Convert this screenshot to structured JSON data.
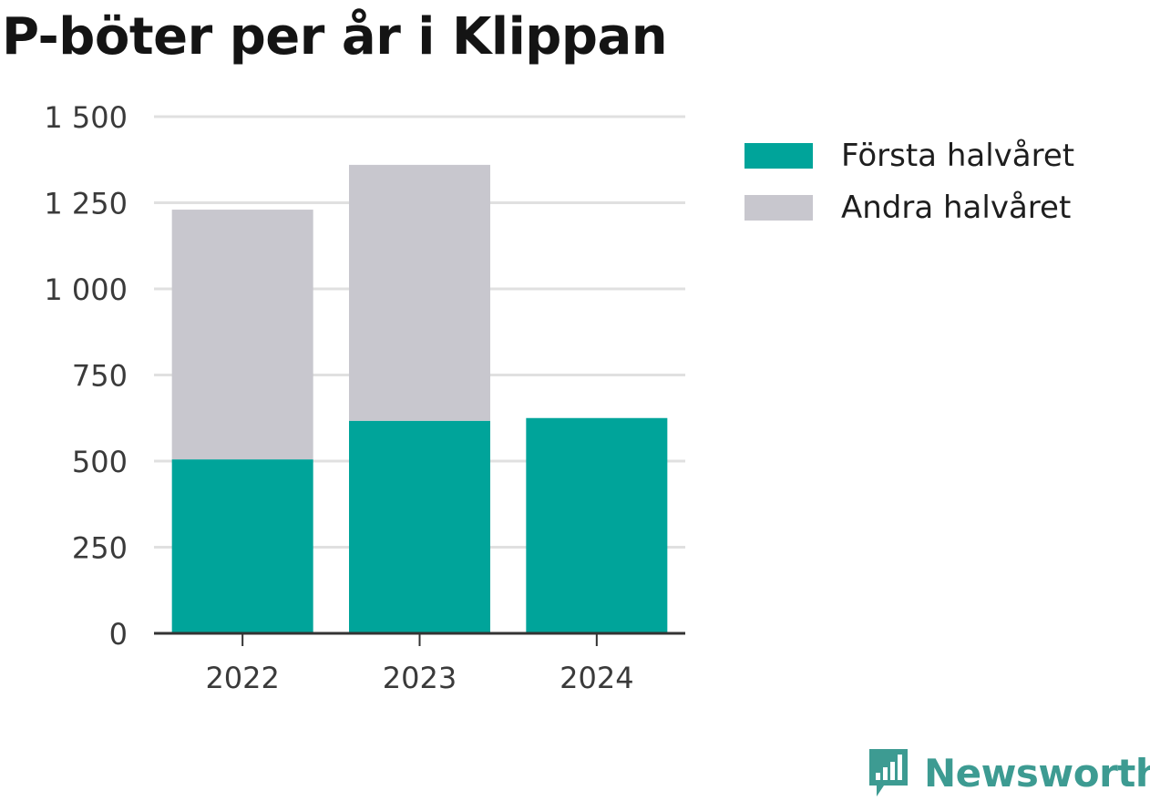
{
  "title": "P-böter per år i Klippan",
  "brand": {
    "name": "Newsworthy",
    "color": "#3d9b92"
  },
  "chart_data": {
    "type": "bar",
    "stacked": true,
    "categories": [
      "2022",
      "2023",
      "2024"
    ],
    "series": [
      {
        "name": "Första halvåret",
        "values": [
          505,
          617,
          625
        ],
        "color": "#00a49a"
      },
      {
        "name": "Andra halvåret",
        "values": [
          725,
          743,
          0
        ],
        "color": "#c8c7ce"
      }
    ],
    "ylim": [
      0,
      1500
    ],
    "yticks": [
      0,
      250,
      500,
      750,
      1000,
      1250,
      1500
    ],
    "ytick_labels": [
      "0",
      "250",
      "500",
      "750",
      "1 000",
      "1 250",
      "1 500"
    ],
    "grid": true,
    "legend": "top-right",
    "xlabel": "",
    "ylabel": ""
  }
}
